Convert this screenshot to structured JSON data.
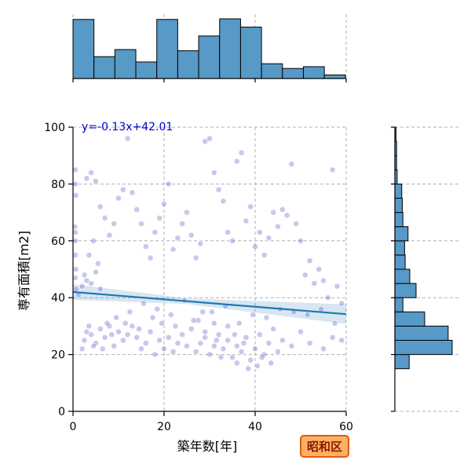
{
  "chart_data": {
    "type": "scatter",
    "xlabel": "築年数[年]",
    "ylabel": "専有面積[m2]",
    "xlim": [
      0,
      60
    ],
    "ylim": [
      0,
      100
    ],
    "xticks": [
      0,
      20,
      40,
      60
    ],
    "yticks": [
      0,
      20,
      40,
      60,
      80,
      100
    ],
    "grid": true,
    "point_color": "#3b3bbf",
    "hist_color": "#5799c7",
    "regression": {
      "slope": -0.13,
      "intercept": 42.01,
      "label": "y=-0.13x+42.01",
      "color": "#1f77b4"
    },
    "badge": "昭和区",
    "top_histogram": {
      "bin_edges": [
        0,
        4.6,
        9.2,
        13.8,
        18.4,
        23.0,
        27.6,
        32.2,
        36.8,
        41.4,
        46.0,
        50.6,
        55.2,
        59.8
      ],
      "counts": [
        100,
        37,
        49,
        28,
        100,
        47,
        72,
        101,
        87,
        25,
        17,
        20,
        6
      ]
    },
    "right_histogram": {
      "bin_edges": [
        15,
        20,
        25,
        30,
        35,
        40,
        45,
        50,
        55,
        60,
        65,
        70,
        75,
        80,
        85,
        90,
        95,
        100
      ],
      "counts": [
        25,
        100,
        93,
        52,
        14,
        37,
        26,
        18,
        17,
        23,
        14,
        13,
        12,
        4,
        3,
        3,
        2
      ]
    },
    "points": [
      [
        0.5,
        85
      ],
      [
        0.5,
        80
      ],
      [
        0.6,
        76
      ],
      [
        0.4,
        65
      ],
      [
        0.5,
        63
      ],
      [
        0.5,
        60
      ],
      [
        0.5,
        55
      ],
      [
        0.6,
        50
      ],
      [
        0.5,
        47
      ],
      [
        0.7,
        43
      ],
      [
        1.2,
        41
      ],
      [
        2.0,
        44
      ],
      [
        2.5,
        48
      ],
      [
        3.0,
        46
      ],
      [
        4.0,
        45
      ],
      [
        5.0,
        49
      ],
      [
        6.0,
        43
      ],
      [
        3.5,
        55
      ],
      [
        4.5,
        60
      ],
      [
        5.5,
        52
      ],
      [
        2.0,
        22
      ],
      [
        2.5,
        25
      ],
      [
        3.0,
        28
      ],
      [
        3.5,
        30
      ],
      [
        4.0,
        27
      ],
      [
        5.0,
        24
      ],
      [
        6.0,
        29
      ],
      [
        7.0,
        26
      ],
      [
        8.0,
        30
      ],
      [
        9.0,
        23
      ],
      [
        10.0,
        28
      ],
      [
        11.0,
        25
      ],
      [
        12.0,
        27
      ],
      [
        13.0,
        30
      ],
      [
        14.0,
        26
      ],
      [
        15.0,
        22
      ],
      [
        16.0,
        24
      ],
      [
        17.0,
        28
      ],
      [
        18.0,
        20
      ],
      [
        19.0,
        25
      ],
      [
        20.0,
        22
      ],
      [
        21.0,
        26
      ],
      [
        22.0,
        21
      ],
      [
        23.0,
        24
      ],
      [
        24.0,
        27
      ],
      [
        25.0,
        23
      ],
      [
        26.0,
        29
      ],
      [
        27.0,
        21
      ],
      [
        28.0,
        24
      ],
      [
        29.0,
        26
      ],
      [
        30.0,
        20
      ],
      [
        31.0,
        23
      ],
      [
        32.0,
        27
      ],
      [
        33.0,
        22
      ],
      [
        34.0,
        25
      ],
      [
        35.0,
        19
      ],
      [
        36.0,
        23
      ],
      [
        37.0,
        21
      ],
      [
        38.0,
        26
      ],
      [
        39.0,
        18
      ],
      [
        40.0,
        22
      ],
      [
        41.0,
        27
      ],
      [
        42.0,
        20
      ],
      [
        43.0,
        24
      ],
      [
        44.0,
        29
      ],
      [
        45.0,
        21
      ],
      [
        46.0,
        25
      ],
      [
        48.0,
        23
      ],
      [
        50.0,
        28
      ],
      [
        52.0,
        24
      ],
      [
        55.0,
        22
      ],
      [
        57.0,
        26
      ],
      [
        59.0,
        25
      ],
      [
        3.0,
        82
      ],
      [
        4.0,
        84
      ],
      [
        5.0,
        81
      ],
      [
        6.0,
        72
      ],
      [
        7.0,
        68
      ],
      [
        8.0,
        62
      ],
      [
        9.0,
        66
      ],
      [
        10.0,
        75
      ],
      [
        11.0,
        78
      ],
      [
        12.0,
        96
      ],
      [
        13.0,
        77
      ],
      [
        14.0,
        71
      ],
      [
        15.0,
        66
      ],
      [
        16.0,
        58
      ],
      [
        17.0,
        54
      ],
      [
        18.0,
        63
      ],
      [
        19.0,
        68
      ],
      [
        20.0,
        73
      ],
      [
        21.0,
        80
      ],
      [
        22.0,
        57
      ],
      [
        23.0,
        61
      ],
      [
        24.0,
        66
      ],
      [
        25.0,
        70
      ],
      [
        26.0,
        62
      ],
      [
        27.0,
        54
      ],
      [
        28.0,
        59
      ],
      [
        29.0,
        95
      ],
      [
        30.0,
        96
      ],
      [
        31.0,
        84
      ],
      [
        32.0,
        78
      ],
      [
        33.0,
        74
      ],
      [
        34.0,
        63
      ],
      [
        35.0,
        60
      ],
      [
        36.0,
        88
      ],
      [
        37.0,
        91
      ],
      [
        38.0,
        67
      ],
      [
        39.0,
        72
      ],
      [
        40.0,
        58
      ],
      [
        41.0,
        63
      ],
      [
        42.0,
        55
      ],
      [
        43.0,
        61
      ],
      [
        44.0,
        70
      ],
      [
        45.0,
        65
      ],
      [
        46.0,
        71
      ],
      [
        47.0,
        69
      ],
      [
        48.0,
        87
      ],
      [
        49.0,
        66
      ],
      [
        50.0,
        60
      ],
      [
        51.0,
        48
      ],
      [
        52.0,
        53
      ],
      [
        53.0,
        45
      ],
      [
        54.0,
        50
      ],
      [
        55.0,
        46
      ],
      [
        56.0,
        40
      ],
      [
        57.0,
        85
      ],
      [
        58.0,
        44
      ],
      [
        59.0,
        38
      ],
      [
        7.5,
        31
      ],
      [
        9.5,
        33
      ],
      [
        12.5,
        35
      ],
      [
        15.5,
        38
      ],
      [
        18.5,
        36
      ],
      [
        21.5,
        34
      ],
      [
        24.5,
        39
      ],
      [
        27.5,
        32
      ],
      [
        30.5,
        35
      ],
      [
        33.5,
        37
      ],
      [
        36.5,
        31
      ],
      [
        39.5,
        34
      ],
      [
        42.5,
        33
      ],
      [
        45.5,
        36
      ],
      [
        48.5,
        35
      ],
      [
        51.5,
        34
      ],
      [
        54.5,
        36
      ],
      [
        57.5,
        31
      ],
      [
        31.0,
        31
      ],
      [
        34.0,
        30
      ],
      [
        29.0,
        28
      ],
      [
        31.5,
        25
      ],
      [
        32.5,
        19
      ],
      [
        36.0,
        17
      ],
      [
        38.5,
        15
      ],
      [
        40.5,
        16
      ],
      [
        41.5,
        19
      ],
      [
        43.5,
        17
      ],
      [
        37.5,
        24
      ],
      [
        35.5,
        27
      ],
      [
        26.5,
        32
      ],
      [
        28.5,
        35
      ],
      [
        22.5,
        30
      ],
      [
        19.5,
        31
      ],
      [
        17.5,
        33
      ],
      [
        14.5,
        29
      ],
      [
        11.5,
        31
      ],
      [
        8.5,
        27
      ],
      [
        6.5,
        22
      ],
      [
        4.5,
        23
      ]
    ]
  }
}
